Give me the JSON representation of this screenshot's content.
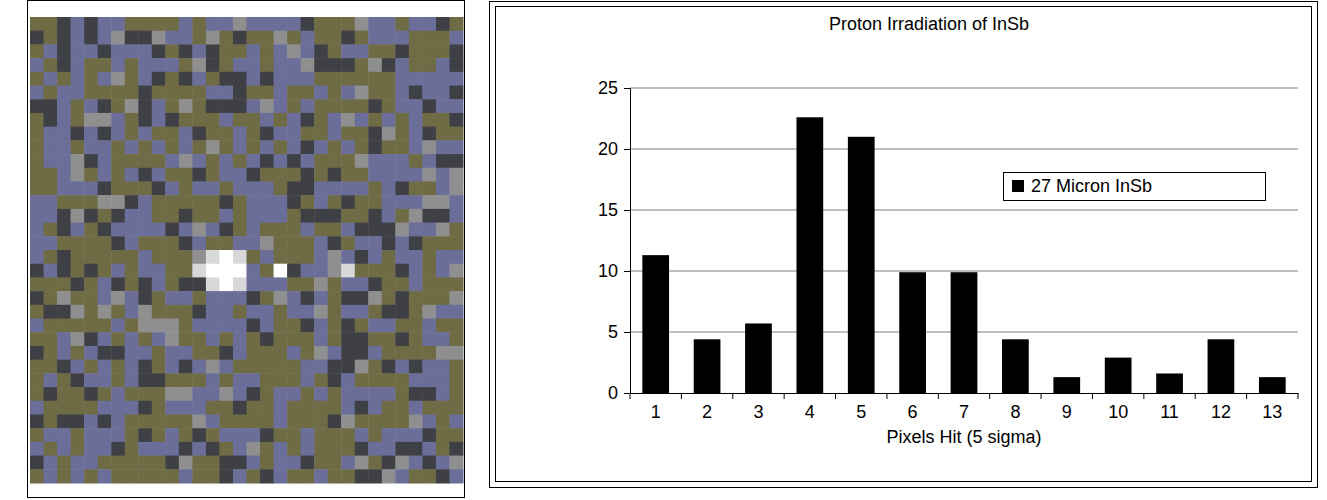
{
  "chart_data": {
    "type": "bar",
    "title": "Proton Irradiation of InSb",
    "x_label": "Pixels Hit (5 sigma)",
    "categories": [
      "1",
      "2",
      "3",
      "4",
      "5",
      "6",
      "7",
      "8",
      "9",
      "10",
      "11",
      "12",
      "13"
    ],
    "series": [
      {
        "name": "27 Micron InSb",
        "color": "#000000",
        "values": [
          11.3,
          4.4,
          5.7,
          22.6,
          21,
          9.9,
          9.9,
          4.4,
          1.3,
          2.9,
          1.6,
          4.4,
          1.3
        ]
      }
    ],
    "ylim": [
      0,
      25
    ],
    "yticks": [
      0,
      5,
      10,
      15,
      20,
      25
    ],
    "grid": true,
    "legend": "upper right"
  }
}
